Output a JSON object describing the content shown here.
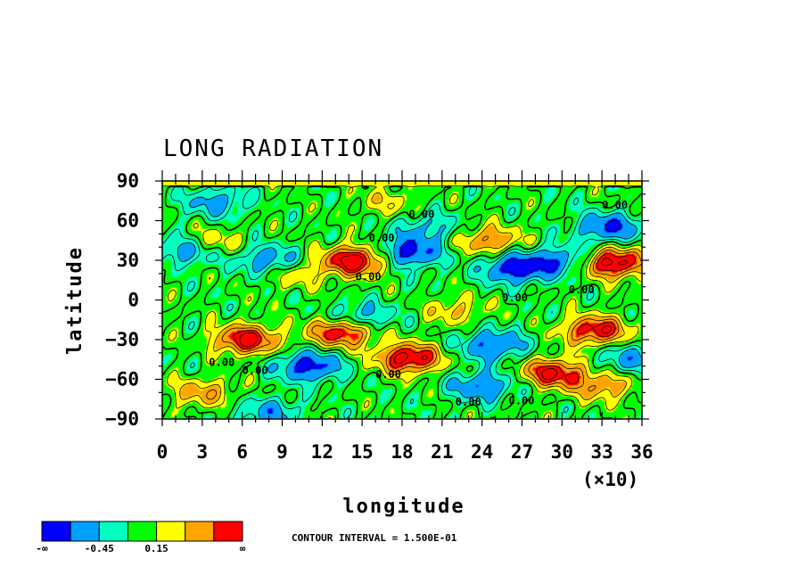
{
  "chart_data": {
    "type": "heatmap",
    "title": "LONG RADIATION",
    "xlabel": "longitude",
    "ylabel": "latitude",
    "x_scale_note": "(×10)",
    "xlim": [
      0,
      36
    ],
    "ylim": [
      -90,
      90
    ],
    "x_ticks": [
      "0",
      "3",
      "6",
      "9",
      "12",
      "15",
      "18",
      "21",
      "24",
      "27",
      "30",
      "33",
      "36"
    ],
    "y_ticks": [
      "90",
      "60",
      "30",
      "0",
      "−30",
      "−60",
      "−90"
    ],
    "contour_interval_text": "CONTOUR INTERVAL = 1.500E-01",
    "contour_label": "0.00",
    "colorbar": {
      "colors": [
        "#0000ff",
        "#00a0ff",
        "#00ffc0",
        "#00ff00",
        "#ffff00",
        "#ffa500",
        "#ff0000"
      ],
      "labels": [
        "-∞",
        "-0.45",
        "0.15",
        "∞"
      ]
    },
    "features": [
      {
        "lon": 14.5,
        "lat": 30,
        "value": 0.9
      },
      {
        "lon": 33.8,
        "lat": 28,
        "value": 0.9
      },
      {
        "lon": 18.5,
        "lat": -44,
        "value": 0.85
      },
      {
        "lon": 6.3,
        "lat": -30,
        "value": 0.8
      },
      {
        "lon": 13.5,
        "lat": -24,
        "value": 0.8
      },
      {
        "lon": 29.3,
        "lat": -55,
        "value": 0.75
      },
      {
        "lon": 32.5,
        "lat": -23,
        "value": 0.75
      },
      {
        "lon": 3.5,
        "lat": 42,
        "value": 0.45
      },
      {
        "lon": 24.5,
        "lat": 45,
        "value": 0.5
      },
      {
        "lon": 3,
        "lat": -70,
        "value": 0.4
      },
      {
        "lon": 33,
        "lat": -65,
        "value": 0.45
      },
      {
        "lon": 10,
        "lat": 20,
        "value": 0.3
      },
      {
        "lon": 22,
        "lat": -8,
        "value": 0.3
      },
      {
        "lon": 17,
        "lat": 74,
        "value": 0.25
      },
      {
        "lon": 26.5,
        "lat": 24,
        "value": -0.75
      },
      {
        "lon": 11,
        "lat": -50,
        "value": -0.7
      },
      {
        "lon": 18.5,
        "lat": 36,
        "value": -0.7
      },
      {
        "lon": 2,
        "lat": 38,
        "value": -0.6
      },
      {
        "lon": 33.5,
        "lat": 55,
        "value": -0.6
      },
      {
        "lon": 24,
        "lat": -65,
        "value": -0.55
      },
      {
        "lon": 8,
        "lat": 30,
        "value": -0.5
      },
      {
        "lon": 4,
        "lat": 74,
        "value": -0.4
      },
      {
        "lon": 24.8,
        "lat": -34,
        "value": -0.6
      },
      {
        "lon": 15,
        "lat": -13,
        "value": -0.45
      },
      {
        "lon": 30,
        "lat": 30,
        "value": -0.5
      },
      {
        "lon": 35,
        "lat": -45,
        "value": -0.4
      },
      {
        "lon": 20,
        "lat": 55,
        "value": -0.35
      },
      {
        "lon": 8,
        "lat": -85,
        "value": -0.4
      }
    ]
  }
}
